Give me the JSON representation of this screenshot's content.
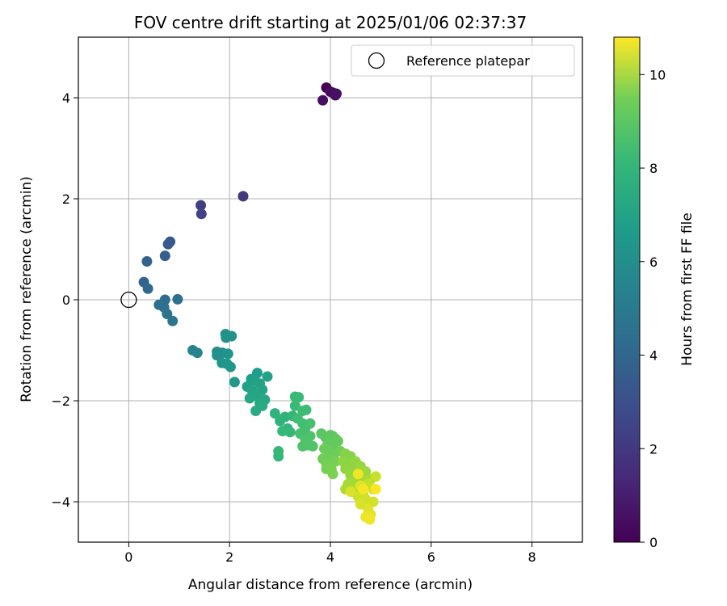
{
  "chart_data": {
    "type": "scatter",
    "title": "FOV centre drift starting at 2025/01/06 02:37:37",
    "xlabel": "Angular distance from reference (arcmin)",
    "ylabel": "Rotation from reference (arcmin)",
    "xlim": [
      -1,
      9
    ],
    "ylim": [
      -4.8,
      5.2
    ],
    "xticks": [
      0,
      2,
      4,
      6,
      8
    ],
    "xtick_labels": [
      "0",
      "2",
      "4",
      "6",
      "8"
    ],
    "yticks": [
      -4,
      -2,
      0,
      2,
      4
    ],
    "ytick_labels": [
      "−4",
      "−2",
      "0",
      "2",
      "4"
    ],
    "grid": true,
    "legend": {
      "position": "top-right",
      "entries": [
        "Reference platepar"
      ]
    },
    "reference_point": {
      "name": "Reference platepar",
      "x": 0,
      "y": 0
    },
    "colorbar": {
      "label": "Hours from first FF file",
      "colormap": "viridis",
      "range": [
        0,
        10.8
      ],
      "ticks": [
        0,
        2,
        4,
        6,
        8,
        10
      ],
      "tick_labels": [
        "0",
        "2",
        "4",
        "6",
        "8",
        "10"
      ]
    },
    "points": [
      [
        3.92,
        4.2,
        0.0
      ],
      [
        4.05,
        4.1,
        0.1
      ],
      [
        4.1,
        4.05,
        0.2
      ],
      [
        4.0,
        4.12,
        0.3
      ],
      [
        3.85,
        3.95,
        0.4
      ],
      [
        4.12,
        4.08,
        0.5
      ],
      [
        2.27,
        2.05,
        1.7
      ],
      [
        1.43,
        1.87,
        2.0
      ],
      [
        1.44,
        1.7,
        2.2
      ],
      [
        0.82,
        1.15,
        3.0
      ],
      [
        0.78,
        1.1,
        3.1
      ],
      [
        0.72,
        0.87,
        3.2
      ],
      [
        0.36,
        0.76,
        3.4
      ],
      [
        0.3,
        0.35,
        3.5
      ],
      [
        0.38,
        0.22,
        3.6
      ],
      [
        0.72,
        0.0,
        3.8
      ],
      [
        0.6,
        -0.1,
        3.9
      ],
      [
        0.7,
        -0.15,
        4.0
      ],
      [
        0.76,
        -0.28,
        4.1
      ],
      [
        0.87,
        -0.42,
        4.2
      ],
      [
        0.97,
        0.01,
        4.0
      ],
      [
        1.27,
        -1.0,
        4.8
      ],
      [
        1.36,
        -1.05,
        4.9
      ],
      [
        1.75,
        -1.03,
        5.3
      ],
      [
        1.75,
        -1.1,
        5.4
      ],
      [
        1.86,
        -1.05,
        5.4
      ],
      [
        1.92,
        -0.68,
        5.5
      ],
      [
        1.93,
        -0.75,
        5.5
      ],
      [
        2.04,
        -0.72,
        5.5
      ],
      [
        1.97,
        -1.07,
        5.6
      ],
      [
        1.85,
        -1.25,
        5.6
      ],
      [
        1.95,
        -1.27,
        5.7
      ],
      [
        2.02,
        -1.33,
        5.7
      ],
      [
        2.1,
        -1.63,
        5.8
      ],
      [
        2.55,
        -1.45,
        6.0
      ],
      [
        2.43,
        -1.57,
        6.0
      ],
      [
        2.5,
        -1.6,
        6.1
      ],
      [
        2.35,
        -1.72,
        6.1
      ],
      [
        2.6,
        -1.66,
        6.2
      ],
      [
        2.75,
        -1.52,
        6.2
      ],
      [
        2.45,
        -1.8,
        6.3
      ],
      [
        2.65,
        -1.78,
        6.3
      ],
      [
        2.55,
        -1.9,
        6.4
      ],
      [
        2.4,
        -1.95,
        6.4
      ],
      [
        2.7,
        -1.98,
        6.5
      ],
      [
        2.6,
        -2.05,
        6.5
      ],
      [
        2.52,
        -2.2,
        6.6
      ],
      [
        2.65,
        -2.1,
        6.6
      ],
      [
        2.9,
        -2.25,
        6.9
      ],
      [
        3.0,
        -2.4,
        7.0
      ],
      [
        3.1,
        -2.32,
        7.0
      ],
      [
        3.25,
        -2.3,
        7.1
      ],
      [
        3.15,
        -2.55,
        7.1
      ],
      [
        3.05,
        -2.6,
        7.2
      ],
      [
        3.2,
        -2.62,
        7.2
      ],
      [
        2.97,
        -3.0,
        7.2
      ],
      [
        2.97,
        -3.1,
        7.2
      ],
      [
        3.3,
        -1.92,
        7.3
      ],
      [
        3.37,
        -1.93,
        7.3
      ],
      [
        3.3,
        -2.1,
        7.3
      ],
      [
        3.45,
        -2.2,
        7.4
      ],
      [
        3.52,
        -2.18,
        7.4
      ],
      [
        3.35,
        -2.35,
        7.4
      ],
      [
        3.45,
        -2.45,
        7.5
      ],
      [
        3.5,
        -2.55,
        7.5
      ],
      [
        3.6,
        -2.45,
        7.6
      ],
      [
        3.4,
        -2.65,
        7.6
      ],
      [
        3.5,
        -2.75,
        7.7
      ],
      [
        3.6,
        -2.7,
        7.7
      ],
      [
        3.45,
        -2.9,
        7.7
      ],
      [
        3.55,
        -2.88,
        7.8
      ],
      [
        3.65,
        -2.9,
        7.8
      ],
      [
        3.82,
        -2.65,
        8.0
      ],
      [
        3.9,
        -2.72,
        8.0
      ],
      [
        4.0,
        -2.68,
        8.1
      ],
      [
        4.05,
        -2.7,
        8.1
      ],
      [
        4.1,
        -2.75,
        8.1
      ],
      [
        3.95,
        -2.85,
        8.2
      ],
      [
        4.05,
        -2.9,
        8.2
      ],
      [
        4.15,
        -2.8,
        8.2
      ],
      [
        3.88,
        -2.95,
        8.3
      ],
      [
        3.98,
        -3.0,
        8.3
      ],
      [
        4.08,
        -3.05,
        8.3
      ],
      [
        4.2,
        -3.0,
        8.4
      ],
      [
        3.85,
        -3.15,
        8.4
      ],
      [
        4.0,
        -3.15,
        8.4
      ],
      [
        4.1,
        -3.2,
        8.5
      ],
      [
        3.92,
        -3.25,
        8.5
      ],
      [
        3.92,
        -3.35,
        8.5
      ],
      [
        4.02,
        -3.35,
        8.6
      ],
      [
        4.05,
        -3.45,
        8.6
      ],
      [
        4.3,
        -3.05,
        8.8
      ],
      [
        4.4,
        -3.1,
        8.8
      ],
      [
        4.25,
        -3.2,
        8.9
      ],
      [
        4.35,
        -3.25,
        8.9
      ],
      [
        4.5,
        -3.2,
        9.0
      ],
      [
        4.3,
        -3.35,
        9.0
      ],
      [
        4.45,
        -3.35,
        9.0
      ],
      [
        4.6,
        -3.3,
        9.1
      ],
      [
        4.4,
        -3.48,
        9.1
      ],
      [
        4.55,
        -3.5,
        9.2
      ],
      [
        4.7,
        -3.4,
        9.2
      ],
      [
        4.5,
        -3.6,
        9.3
      ],
      [
        4.65,
        -3.6,
        9.3
      ],
      [
        4.35,
        -3.65,
        9.3
      ],
      [
        4.8,
        -3.55,
        9.4
      ],
      [
        4.3,
        -3.75,
        9.4
      ],
      [
        4.45,
        -3.8,
        9.5
      ],
      [
        4.6,
        -3.75,
        9.5
      ],
      [
        4.75,
        -3.65,
        9.8
      ],
      [
        4.9,
        -3.5,
        9.9
      ],
      [
        4.65,
        -3.85,
        9.9
      ],
      [
        4.85,
        -3.75,
        10.0
      ],
      [
        4.55,
        -3.9,
        10.0
      ],
      [
        4.7,
        -3.95,
        10.1
      ],
      [
        4.85,
        -4.0,
        10.1
      ],
      [
        4.4,
        -3.8,
        10.2
      ],
      [
        4.6,
        -4.05,
        10.2
      ],
      [
        4.75,
        -4.15,
        10.3
      ],
      [
        4.6,
        -3.68,
        10.3
      ],
      [
        4.8,
        -4.25,
        10.4
      ],
      [
        4.7,
        -4.3,
        10.5
      ],
      [
        4.78,
        -4.35,
        10.6
      ],
      [
        4.55,
        -3.45,
        10.6
      ],
      [
        4.65,
        -3.75,
        10.7
      ],
      [
        4.9,
        -3.75,
        10.8
      ]
    ]
  }
}
